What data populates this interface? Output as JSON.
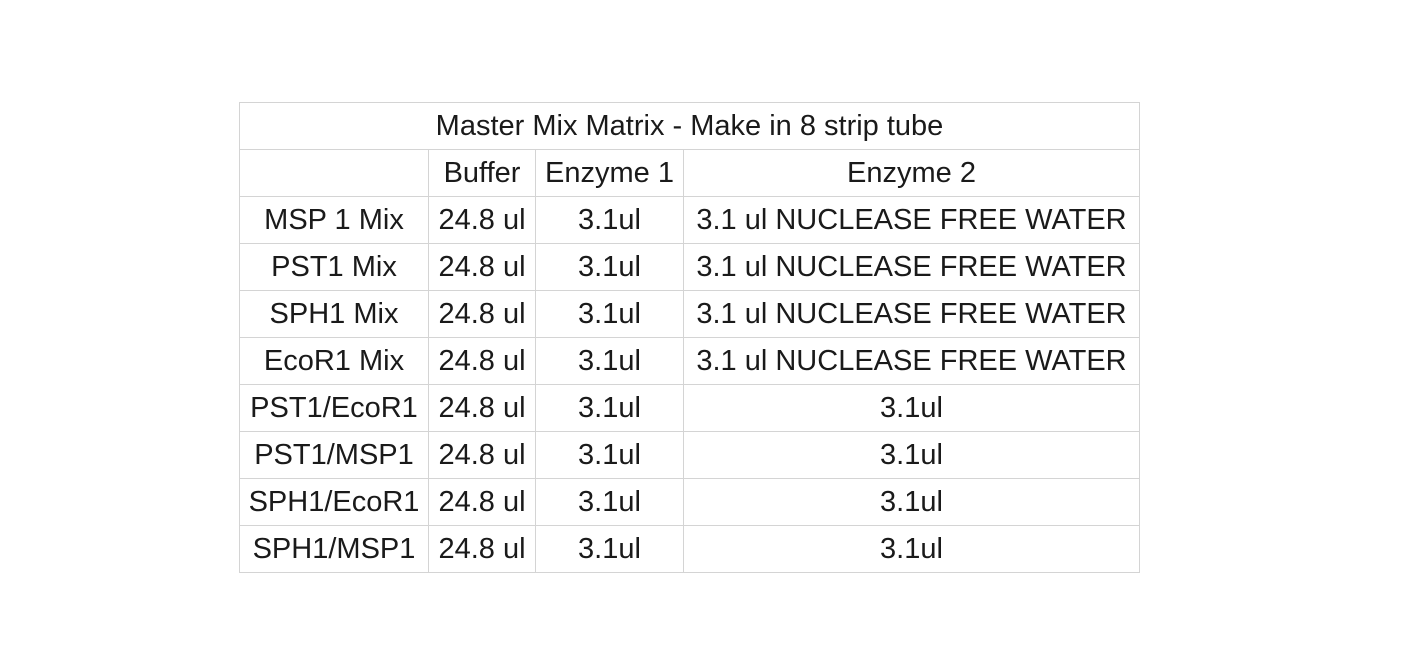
{
  "title": "Master Mix Matrix - Make in 8 strip tube",
  "columns": [
    "",
    "Buffer",
    "Enzyme 1",
    "Enzyme 2"
  ],
  "rows": [
    [
      "MSP 1 Mix",
      "24.8 ul",
      "3.1ul",
      "3.1 ul NUCLEASE FREE WATER"
    ],
    [
      "PST1 Mix",
      "24.8 ul",
      "3.1ul",
      "3.1 ul NUCLEASE FREE WATER"
    ],
    [
      "SPH1 Mix",
      "24.8 ul",
      "3.1ul",
      "3.1 ul NUCLEASE FREE WATER"
    ],
    [
      "EcoR1 Mix",
      "24.8 ul",
      "3.1ul",
      "3.1 ul NUCLEASE FREE WATER"
    ],
    [
      "PST1/EcoR1",
      "24.8 ul",
      "3.1ul",
      "3.1ul"
    ],
    [
      "PST1/MSP1",
      "24.8 ul",
      "3.1ul",
      "3.1ul"
    ],
    [
      "SPH1/EcoR1",
      "24.8 ul",
      "3.1ul",
      "3.1ul"
    ],
    [
      "SPH1/MSP1",
      "24.8 ul",
      "3.1ul",
      "3.1ul"
    ]
  ]
}
